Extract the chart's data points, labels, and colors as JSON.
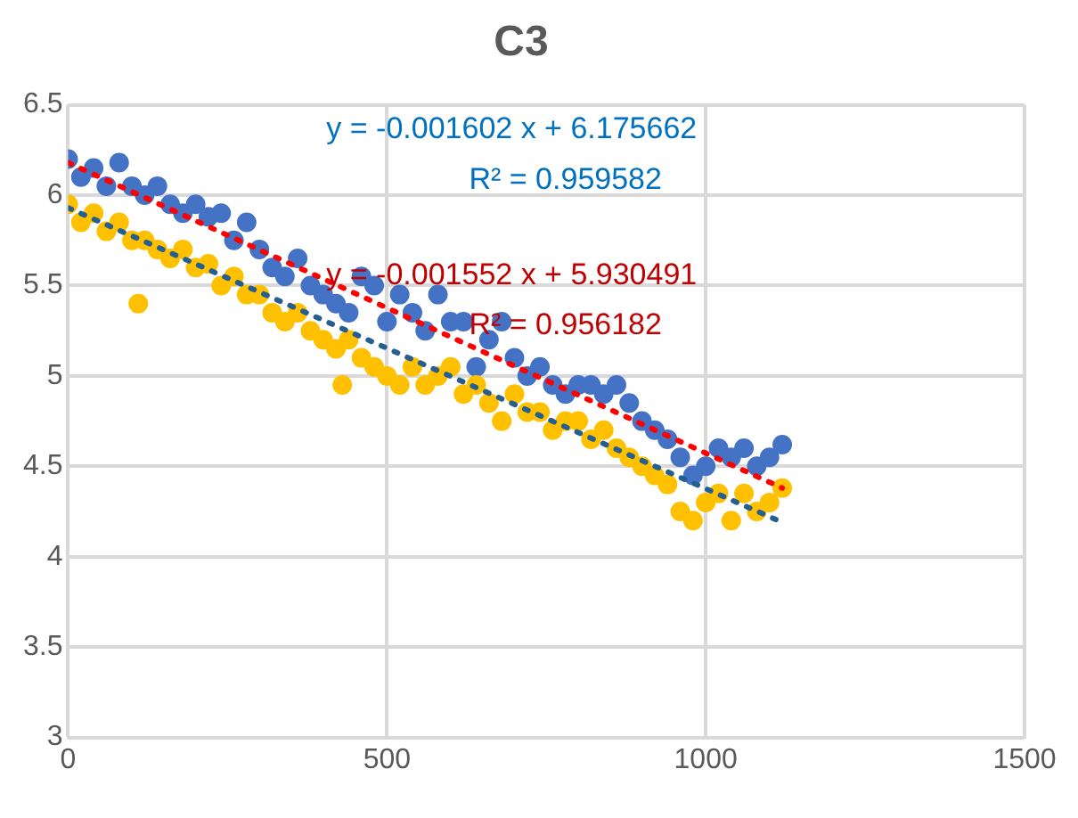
{
  "chart_data": {
    "type": "scatter",
    "title": "C3",
    "marker": "circle",
    "grid": true,
    "legend": false,
    "xlim": [
      0,
      1500
    ],
    "xticks": [
      0,
      500,
      1000,
      1500
    ],
    "ylim": [
      3,
      6.5
    ],
    "yticks": [
      3,
      3.5,
      4,
      4.5,
      5,
      5.5,
      6,
      6.5
    ],
    "annotations": [
      "y = -0.001602 x + 6.175662",
      "R² = 0.959582",
      "y = -0.001552 x + 5.930491",
      "R² = 0.956182"
    ],
    "series": [
      {
        "color": "#4472c4",
        "x": [
          0,
          20,
          40,
          60,
          80,
          100,
          120,
          140,
          160,
          180,
          200,
          220,
          240,
          260,
          280,
          300,
          320,
          340,
          360,
          380,
          400,
          420,
          440,
          460,
          480,
          500,
          520,
          540,
          560,
          580,
          600,
          620,
          640,
          660,
          680,
          700,
          720,
          740,
          760,
          780,
          800,
          820,
          840,
          860,
          880,
          900,
          920,
          940,
          960,
          980,
          1000,
          1020,
          1040,
          1060,
          1080,
          1100,
          1120
        ],
        "values": [
          6.2,
          6.1,
          6.15,
          6.05,
          6.18,
          6.05,
          6.0,
          6.05,
          5.95,
          5.9,
          5.95,
          5.88,
          5.9,
          5.75,
          5.85,
          5.7,
          5.6,
          5.55,
          5.65,
          5.5,
          5.45,
          5.4,
          5.35,
          5.55,
          5.5,
          5.3,
          5.45,
          5.35,
          5.25,
          5.45,
          5.3,
          5.3,
          5.05,
          5.2,
          5.3,
          5.1,
          5.0,
          5.05,
          4.95,
          4.9,
          4.95,
          4.95,
          4.9,
          4.95,
          4.85,
          4.75,
          4.7,
          4.65,
          4.55,
          4.45,
          4.5,
          4.6,
          4.55,
          4.6,
          4.5,
          4.55,
          4.62
        ]
      },
      {
        "color": "#ffc000",
        "x": [
          0,
          20,
          40,
          60,
          80,
          100,
          110,
          120,
          140,
          160,
          180,
          200,
          220,
          240,
          260,
          280,
          300,
          320,
          340,
          360,
          380,
          400,
          420,
          430,
          440,
          460,
          480,
          500,
          520,
          540,
          560,
          580,
          600,
          620,
          640,
          660,
          680,
          700,
          720,
          740,
          760,
          780,
          800,
          820,
          840,
          860,
          880,
          900,
          920,
          940,
          960,
          980,
          1000,
          1020,
          1040,
          1060,
          1080,
          1100,
          1120
        ],
        "values": [
          5.95,
          5.85,
          5.9,
          5.8,
          5.85,
          5.75,
          5.4,
          5.75,
          5.7,
          5.65,
          5.7,
          5.6,
          5.62,
          5.5,
          5.55,
          5.45,
          5.45,
          5.35,
          5.3,
          5.35,
          5.25,
          5.2,
          5.15,
          4.95,
          5.2,
          5.1,
          5.05,
          5.0,
          4.95,
          5.05,
          4.95,
          5.0,
          5.05,
          4.9,
          4.95,
          4.85,
          4.75,
          4.9,
          4.8,
          4.8,
          4.7,
          4.75,
          4.75,
          4.65,
          4.7,
          4.6,
          4.55,
          4.5,
          4.45,
          4.4,
          4.25,
          4.2,
          4.3,
          4.35,
          4.2,
          4.35,
          4.25,
          4.3,
          4.38
        ]
      },
      {
        "type": "line",
        "color": "#ff0000",
        "marker": "none",
        "line_style": "dotted",
        "x": [
          0,
          1120
        ],
        "values": [
          6.18,
          4.38
        ]
      },
      {
        "type": "line",
        "color": "#255e91",
        "marker": "none",
        "line_style": "dotted",
        "x": [
          0,
          1120
        ],
        "values": [
          5.93,
          4.19
        ]
      }
    ]
  }
}
